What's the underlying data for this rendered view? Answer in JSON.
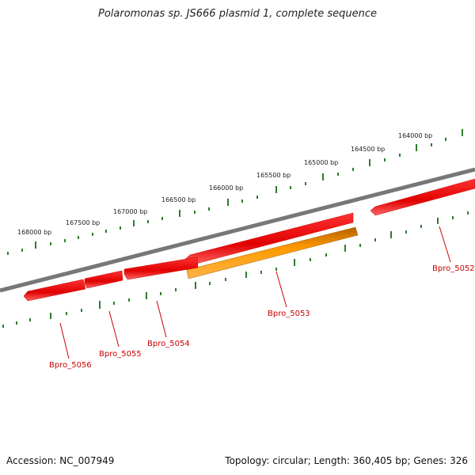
{
  "title": "Polaromonas sp. JS666 plasmid 1, complete sequence",
  "footer": {
    "accession": "Accession: NC_007949",
    "summary": "Topology: circular; Length: 360,405 bp; Genes: 326"
  },
  "ruler_labels": [
    {
      "id": "168000",
      "text": "168000 bp"
    },
    {
      "id": "167500",
      "text": "167500 bp"
    },
    {
      "id": "167000",
      "text": "167000 bp"
    },
    {
      "id": "166500",
      "text": "166500 bp"
    },
    {
      "id": "166000",
      "text": "166000 bp"
    },
    {
      "id": "165500",
      "text": "165500 bp"
    },
    {
      "id": "165000",
      "text": "165000 bp"
    },
    {
      "id": "164500",
      "text": "164500 bp"
    },
    {
      "id": "164000",
      "text": "164000 bp"
    }
  ],
  "genes": [
    {
      "id": "Bpro_5052",
      "label": "Bpro_5052"
    },
    {
      "id": "Bpro_5053",
      "label": "Bpro_5053"
    },
    {
      "id": "Bpro_5054",
      "label": "Bpro_5054"
    },
    {
      "id": "Bpro_5055",
      "label": "Bpro_5055"
    },
    {
      "id": "Bpro_5056",
      "label": "Bpro_5056"
    }
  ],
  "colors": {
    "backbone": "#777777",
    "gene_red": "#ee0000",
    "gene_orange": "#ff9900",
    "ticks": "#2e7d2e",
    "label_red": "#cc0000"
  }
}
